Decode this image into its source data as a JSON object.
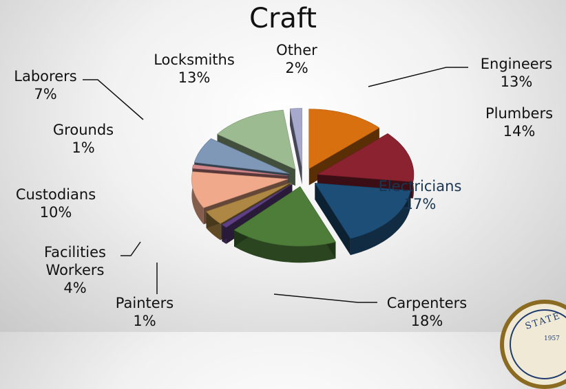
{
  "chart_data": {
    "type": "pie",
    "title": "Craft",
    "slices": [
      {
        "label": "Engineers",
        "value": 13,
        "display": "13%",
        "color": "#d9700f"
      },
      {
        "label": "Plumbers",
        "value": 14,
        "display": "14%",
        "color": "#8b2230"
      },
      {
        "label": "Electricians",
        "value": 17,
        "display": "17%",
        "color": "#1d4e78"
      },
      {
        "label": "Carpenters",
        "value": 18,
        "display": "18%",
        "color": "#4d7d38"
      },
      {
        "label": "Painters",
        "value": 1,
        "display": "1%",
        "color": "#5f3f85"
      },
      {
        "label": "Facilities Workers",
        "value": 4,
        "display": "4%",
        "color": "#ad8743"
      },
      {
        "label": "Custodians",
        "value": 10,
        "display": "10%",
        "color": "#f0a98a"
      },
      {
        "label": "Grounds",
        "value": 1,
        "display": "1%",
        "color": "#d3868a"
      },
      {
        "label": "Laborers",
        "value": 7,
        "display": "7%",
        "color": "#7f98b8"
      },
      {
        "label": "Locksmiths",
        "value": 13,
        "display": "13%",
        "color": "#9dbb91"
      },
      {
        "label": "Other",
        "value": 2,
        "display": "2%",
        "color": "#a6a8cc"
      }
    ]
  },
  "labels": {
    "engineers": {
      "name": "Engineers",
      "pct": "13%"
    },
    "plumbers": {
      "name": "Plumbers",
      "pct": "14%"
    },
    "electricians": {
      "name": "Electricians",
      "pct": "17%"
    },
    "carpenters": {
      "name": "Carpenters",
      "pct": "18%"
    },
    "painters": {
      "name": "Painters",
      "pct": "1%"
    },
    "facilities": {
      "line1": "Facilities",
      "line2": "Workers",
      "pct": "4%"
    },
    "custodians": {
      "name": "Custodians",
      "pct": "10%"
    },
    "grounds": {
      "name": "Grounds",
      "pct": "1%"
    },
    "laborers": {
      "name": "Laborers",
      "pct": "7%"
    },
    "locksmiths": {
      "name": "Locksmiths",
      "pct": "13%"
    },
    "other": {
      "name": "Other",
      "pct": "2%"
    }
  },
  "seal": {
    "text": "STATE",
    "year": "1957"
  }
}
